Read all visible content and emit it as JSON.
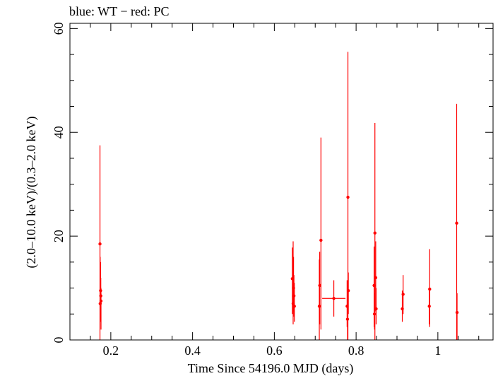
{
  "chart_data": {
    "type": "scatter",
    "title": "blue: WT − red: PC",
    "xlabel": "Time Since 54196.0 MJD (days)",
    "ylabel": "(2.0–10.0 keV)/(0.3–2.0 keV)",
    "xlim": [
      0.1,
      1.135
    ],
    "ylim": [
      0,
      61
    ],
    "x_ticks": [
      0.2,
      0.4,
      0.6,
      0.8,
      1
    ],
    "x_tick_labels": [
      "0.2",
      "0.4",
      "0.6",
      "0.8",
      "1"
    ],
    "y_ticks": [
      0,
      20,
      40,
      60
    ],
    "y_tick_labels": [
      "0",
      "20",
      "40",
      "60"
    ],
    "grid": false,
    "series": [
      {
        "color": "#ff0000",
        "points": [
          {
            "x": 0.1735,
            "y": 18.5,
            "ylo": 0,
            "yhi": 37.5
          },
          {
            "x": 0.174,
            "y": 7.0,
            "ylo": 3.5,
            "yhi": 16.0
          },
          {
            "x": 0.175,
            "y": 9.5,
            "ylo": 5.0,
            "yhi": 15.0
          },
          {
            "x": 0.1755,
            "y": 8.5,
            "ylo": 4.0,
            "yhi": 12.0
          },
          {
            "x": 0.176,
            "y": 7.5,
            "ylo": 2.0,
            "yhi": 10.0
          },
          {
            "x": 0.644,
            "y": 11.8,
            "ylo": 5.0,
            "yhi": 17.8
          },
          {
            "x": 0.646,
            "y": 7.0,
            "ylo": 3.0,
            "yhi": 19.0
          },
          {
            "x": 0.647,
            "y": 10.0,
            "ylo": 5.5,
            "yhi": 16.0
          },
          {
            "x": 0.648,
            "y": 8.5,
            "ylo": 4.5,
            "yhi": 12.5
          },
          {
            "x": 0.649,
            "y": 6.5,
            "ylo": 3.5,
            "yhi": 11.0
          },
          {
            "x": 0.71,
            "y": 6.5,
            "ylo": 0,
            "yhi": 15.5
          },
          {
            "x": 0.711,
            "y": 10.5,
            "ylo": 3.0,
            "yhi": 17.0
          },
          {
            "x": 0.714,
            "y": 19.2,
            "ylo": 2.0,
            "yhi": 39.0
          },
          {
            "x": 0.7455,
            "y": 8.0,
            "ylo": 4.5,
            "yhi": 11.5,
            "xlo": 0.717,
            "xhi": 0.774
          },
          {
            "x": 0.778,
            "y": 6.5,
            "ylo": 2.5,
            "yhi": 11.5
          },
          {
            "x": 0.779,
            "y": 4.0,
            "ylo": 0,
            "yhi": 8.0
          },
          {
            "x": 0.78,
            "y": 27.5,
            "ylo": 0,
            "yhi": 55.5
          },
          {
            "x": 0.781,
            "y": 9.5,
            "ylo": 5.0,
            "yhi": 13.0
          },
          {
            "x": 0.844,
            "y": 10.5,
            "ylo": 2.5,
            "yhi": 18.0
          },
          {
            "x": 0.845,
            "y": 5.0,
            "ylo": 2.0,
            "yhi": 9.0
          },
          {
            "x": 0.846,
            "y": 20.6,
            "ylo": 0,
            "yhi": 41.8
          },
          {
            "x": 0.848,
            "y": 12.0,
            "ylo": 5.5,
            "yhi": 19.0
          },
          {
            "x": 0.849,
            "y": 6.0,
            "ylo": 3.0,
            "yhi": 10.0
          },
          {
            "x": 0.913,
            "y": 6.0,
            "ylo": 3.5,
            "yhi": 9.5
          },
          {
            "x": 0.915,
            "y": 8.8,
            "ylo": 5.0,
            "yhi": 12.5
          },
          {
            "x": 0.979,
            "y": 6.5,
            "ylo": 3.0,
            "yhi": 10.0
          },
          {
            "x": 0.98,
            "y": 9.8,
            "ylo": 2.5,
            "yhi": 17.5
          },
          {
            "x": 1.046,
            "y": 22.5,
            "ylo": 0,
            "yhi": 45.5
          },
          {
            "x": 1.047,
            "y": 5.3,
            "ylo": 0,
            "yhi": 9.0
          }
        ]
      }
    ]
  }
}
